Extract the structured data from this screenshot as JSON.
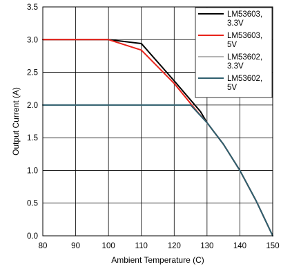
{
  "chart_data": {
    "type": "line",
    "title": "",
    "xlabel": "Ambient Temperature (C)",
    "ylabel": "Output Current (A)",
    "xlim": [
      80,
      150
    ],
    "ylim": [
      0,
      3.5
    ],
    "x_ticks": [
      80,
      90,
      100,
      110,
      120,
      130,
      140,
      150
    ],
    "y_ticks": [
      0.0,
      0.5,
      1.0,
      1.5,
      2.0,
      2.5,
      3.0,
      3.5
    ],
    "y_tick_labels": [
      "0.0",
      "0.5",
      "1.0",
      "1.5",
      "2.0",
      "2.5",
      "3.0",
      "3.5"
    ],
    "grid": true,
    "legend_position": "top-right",
    "series": [
      {
        "name_lines": [
          "LM53603,",
          "3.3V"
        ],
        "color": "#000000",
        "points": [
          [
            80,
            3.0
          ],
          [
            100,
            3.0
          ],
          [
            110,
            2.94
          ],
          [
            120,
            2.37
          ],
          [
            128,
            1.9
          ],
          [
            130,
            1.73
          ],
          [
            135,
            1.4
          ],
          [
            140,
            1.0
          ],
          [
            145,
            0.53
          ],
          [
            150,
            0.0
          ]
        ]
      },
      {
        "name_lines": [
          "LM53603,",
          "5V"
        ],
        "color": "#e8221a",
        "points": [
          [
            80,
            3.0
          ],
          [
            100,
            3.0
          ],
          [
            110,
            2.84
          ],
          [
            120,
            2.33
          ],
          [
            127,
            1.9
          ],
          [
            130,
            1.73
          ],
          [
            135,
            1.4
          ],
          [
            140,
            1.0
          ],
          [
            145,
            0.53
          ],
          [
            150,
            0.0
          ]
        ]
      },
      {
        "name_lines": [
          "LM53602,",
          "3.3V"
        ],
        "color": "#b4b4b4",
        "points": [
          [
            80,
            2.0
          ],
          [
            125,
            2.0
          ],
          [
            130,
            1.73
          ],
          [
            135,
            1.4
          ],
          [
            140,
            1.0
          ],
          [
            145,
            0.53
          ],
          [
            150,
            0.0
          ]
        ]
      },
      {
        "name_lines": [
          "LM53602,",
          "5V"
        ],
        "color": "#2e5f6e",
        "points": [
          [
            80,
            2.0
          ],
          [
            125,
            2.0
          ],
          [
            130,
            1.73
          ],
          [
            135,
            1.4
          ],
          [
            140,
            1.0
          ],
          [
            145,
            0.53
          ],
          [
            150,
            0.0
          ]
        ]
      }
    ]
  }
}
